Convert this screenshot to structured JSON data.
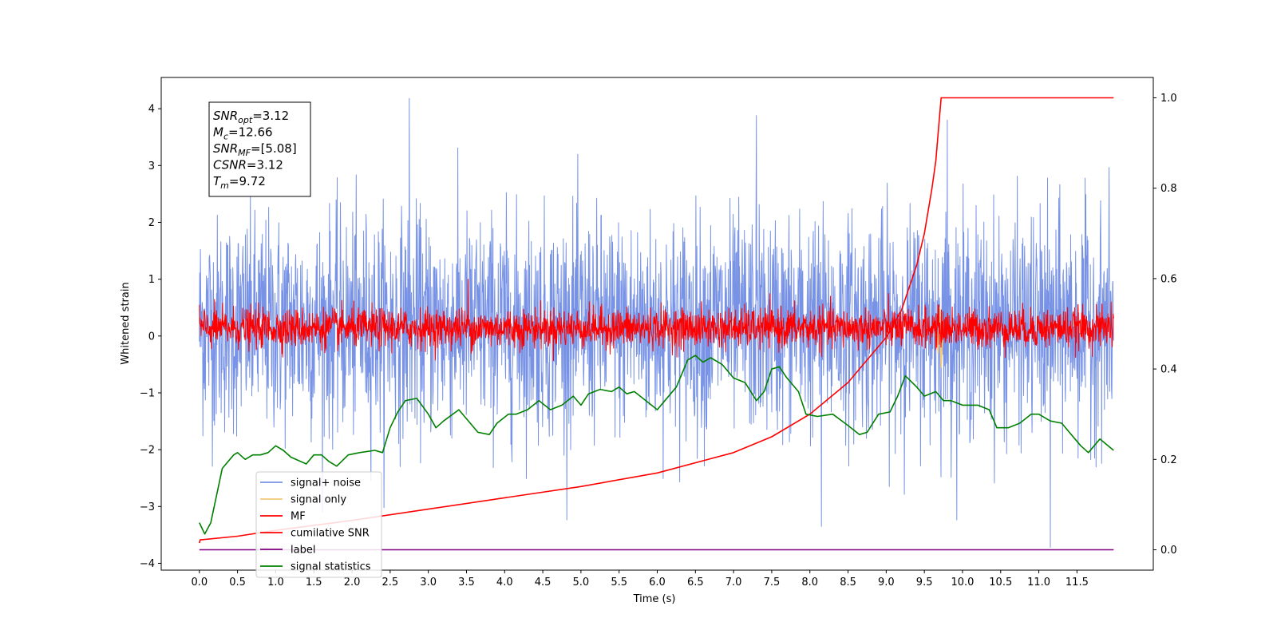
{
  "chart_data": {
    "type": "line",
    "title": "",
    "xlabel": "Time (s)",
    "ylabel": "Whitened strain",
    "y2label": "",
    "xlim": [
      -0.5,
      12.5
    ],
    "ylim": [
      -4.12,
      4.55
    ],
    "y2lim": [
      -0.045,
      1.045
    ],
    "xticks": [
      0.0,
      0.5,
      1.0,
      1.5,
      2.0,
      2.5,
      3.0,
      3.5,
      4.0,
      4.5,
      5.0,
      5.5,
      6.0,
      6.5,
      7.0,
      7.5,
      8.0,
      8.5,
      9.0,
      9.5,
      10.0,
      10.5,
      11.0,
      11.5
    ],
    "xtick_labels": [
      "0.0",
      "0.5",
      "1.0",
      "1.5",
      "2.0",
      "2.5",
      "3.0",
      "3.5",
      "4.0",
      "4.5",
      "5.0",
      "5.5",
      "6.0",
      "6.5",
      "7.0",
      "7.5",
      "8.0",
      "8.5",
      "9.0",
      "9.5",
      "10.0",
      "10.5",
      "11.0",
      "11.5"
    ],
    "yticks": [
      -4,
      -3,
      -2,
      -1,
      0,
      1,
      2,
      3,
      4
    ],
    "ytick_labels": [
      "−4",
      "−3",
      "−2",
      "−1",
      "0",
      "1",
      "2",
      "3",
      "4"
    ],
    "y2ticks": [
      0.0,
      0.2,
      0.4,
      0.6,
      0.8,
      1.0
    ],
    "y2tick_labels": [
      "0.0",
      "0.2",
      "0.4",
      "0.6",
      "0.8",
      "1.0"
    ],
    "grid": false,
    "legend": "lower-left",
    "info_box": [
      {
        "label": "SNR",
        "sub": "opt",
        "value": "=3.12"
      },
      {
        "label": "M",
        "sub": "c",
        "value": "=12.66"
      },
      {
        "label": "SNR",
        "sub": "MF",
        "value": "=[5.08]"
      },
      {
        "label": "CSNR",
        "sub": "",
        "value": "=3.12"
      },
      {
        "label": "T",
        "sub": "m",
        "value": "=9.72"
      }
    ],
    "series": [
      {
        "name": "signal+ noise",
        "axis": "left",
        "color": "#7893E6",
        "style": "noise",
        "x_range": [
          0.0,
          11.98
        ],
        "typical_range": [
          -2.0,
          2.4
        ],
        "extremes": [
          [
            2.75,
            4.18
          ],
          [
            7.3,
            3.88
          ],
          [
            9.8,
            3.8
          ],
          [
            11.15,
            -3.72
          ],
          [
            8.15,
            -3.35
          ]
        ]
      },
      {
        "name": "signal only",
        "axis": "left",
        "color": "#F5C97A",
        "style": "burst",
        "x": [
          9.64,
          9.66,
          9.68,
          9.7,
          9.72,
          9.74
        ],
        "y": [
          0.0,
          0.2,
          -0.3,
          0.5,
          -0.55,
          0.0
        ]
      },
      {
        "name": "MF",
        "axis": "left",
        "color": "#FF0000",
        "style": "noise",
        "x_range": [
          0.0,
          11.98
        ],
        "typical_range": [
          -0.32,
          0.6
        ],
        "extremes": [
          [
            3.52,
            1.0
          ],
          [
            0.0,
            0.55
          ],
          [
            11.95,
            0.6
          ]
        ]
      },
      {
        "name": "cumilative SNR",
        "axis": "right",
        "color": "#FF0000",
        "style": "line",
        "x": [
          0.0,
          0.01,
          0.5,
          1.0,
          2.0,
          3.0,
          4.0,
          5.0,
          6.0,
          7.0,
          7.5,
          8.0,
          8.5,
          9.0,
          9.2,
          9.4,
          9.5,
          9.6,
          9.65,
          9.69,
          9.72,
          10.0,
          11.0,
          11.98
        ],
        "y": [
          0.015,
          0.022,
          0.03,
          0.043,
          0.065,
          0.09,
          0.115,
          0.14,
          0.17,
          0.215,
          0.25,
          0.3,
          0.37,
          0.47,
          0.53,
          0.63,
          0.7,
          0.8,
          0.86,
          0.94,
          1.0,
          1.0,
          1.0,
          1.0
        ]
      },
      {
        "name": "label",
        "axis": "right",
        "color": "#800080",
        "style": "line",
        "x": [
          0.0,
          11.98
        ],
        "y": [
          0.0,
          0.0
        ]
      },
      {
        "name": "signal statistics",
        "axis": "right",
        "color": "#008000",
        "style": "line",
        "x": [
          0.0,
          0.07,
          0.15,
          0.3,
          0.45,
          0.5,
          0.6,
          0.7,
          0.8,
          0.9,
          1.0,
          1.1,
          1.2,
          1.4,
          1.5,
          1.6,
          1.7,
          1.8,
          1.95,
          2.1,
          2.3,
          2.4,
          2.5,
          2.6,
          2.7,
          2.85,
          3.0,
          3.1,
          3.2,
          3.4,
          3.55,
          3.65,
          3.8,
          3.9,
          4.05,
          4.15,
          4.3,
          4.45,
          4.6,
          4.75,
          4.9,
          5.0,
          5.1,
          5.25,
          5.4,
          5.5,
          5.6,
          5.7,
          5.85,
          6.0,
          6.1,
          6.25,
          6.4,
          6.5,
          6.6,
          6.7,
          6.85,
          7.0,
          7.15,
          7.3,
          7.4,
          7.5,
          7.6,
          7.7,
          7.85,
          7.95,
          8.1,
          8.3,
          8.5,
          8.65,
          8.75,
          8.9,
          9.05,
          9.15,
          9.25,
          9.4,
          9.5,
          9.65,
          9.75,
          9.85,
          10.0,
          10.2,
          10.35,
          10.45,
          10.6,
          10.75,
          10.9,
          11.0,
          11.15,
          11.3,
          11.4,
          11.55,
          11.65,
          11.8,
          11.98
        ],
        "y": [
          0.06,
          0.035,
          0.06,
          0.18,
          0.21,
          0.215,
          0.2,
          0.21,
          0.21,
          0.215,
          0.23,
          0.22,
          0.205,
          0.19,
          0.21,
          0.21,
          0.195,
          0.185,
          0.21,
          0.215,
          0.22,
          0.215,
          0.27,
          0.305,
          0.33,
          0.335,
          0.3,
          0.27,
          0.285,
          0.31,
          0.28,
          0.26,
          0.255,
          0.28,
          0.3,
          0.3,
          0.31,
          0.33,
          0.31,
          0.32,
          0.34,
          0.32,
          0.345,
          0.355,
          0.35,
          0.36,
          0.345,
          0.35,
          0.33,
          0.31,
          0.33,
          0.36,
          0.42,
          0.43,
          0.415,
          0.425,
          0.41,
          0.38,
          0.37,
          0.33,
          0.35,
          0.4,
          0.405,
          0.38,
          0.35,
          0.3,
          0.295,
          0.3,
          0.275,
          0.255,
          0.26,
          0.3,
          0.305,
          0.34,
          0.385,
          0.36,
          0.34,
          0.35,
          0.33,
          0.33,
          0.32,
          0.32,
          0.31,
          0.27,
          0.27,
          0.28,
          0.3,
          0.3,
          0.285,
          0.28,
          0.26,
          0.23,
          0.215,
          0.245,
          0.22
        ]
      }
    ]
  }
}
